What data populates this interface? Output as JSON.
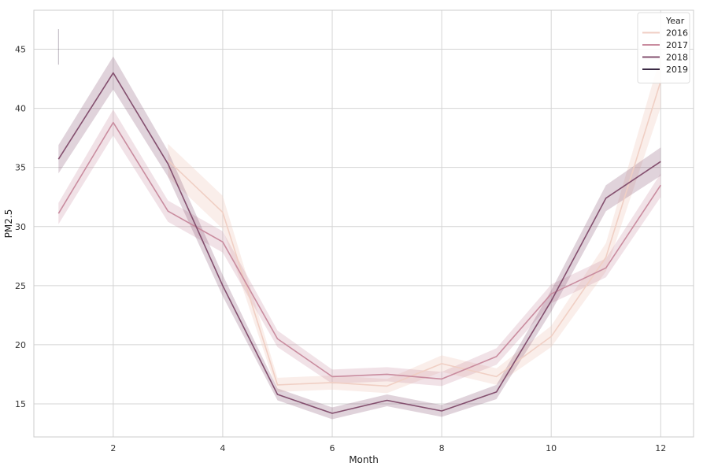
{
  "chart_data": {
    "type": "line",
    "xlabel": "Month",
    "ylabel": "PM2.5",
    "xlim": [
      0.55,
      12.6
    ],
    "ylim": [
      12.2,
      48.3
    ],
    "xticks": [
      2,
      4,
      6,
      8,
      10,
      12
    ],
    "yticks": [
      15,
      20,
      25,
      30,
      35,
      40,
      45
    ],
    "grid": true,
    "legend": {
      "title": "Year",
      "placement": "top-right"
    },
    "series": [
      {
        "name": "2016",
        "color": "#f0cfc4",
        "x": [
          3,
          4,
          5,
          6,
          7,
          8,
          9,
          10,
          11,
          12
        ],
        "values": [
          35.6,
          31.2,
          16.6,
          16.8,
          16.5,
          18.4,
          17.3,
          20.7,
          27.4,
          42.3
        ],
        "ci": [
          1.4,
          1.4,
          0.6,
          0.6,
          0.6,
          0.7,
          0.7,
          0.9,
          1.2,
          2.2
        ]
      },
      {
        "name": "2017",
        "color": "#c98c9f",
        "x": [
          1,
          2,
          3,
          4,
          5,
          6,
          7,
          8,
          9,
          10,
          11,
          12
        ],
        "values": [
          31.1,
          38.8,
          31.3,
          28.7,
          20.5,
          17.3,
          17.5,
          17.1,
          19.0,
          24.3,
          26.5,
          33.5
        ],
        "ci": [
          0.9,
          1.1,
          0.9,
          0.9,
          0.7,
          0.6,
          0.6,
          0.6,
          0.7,
          0.8,
          0.8,
          1.0
        ]
      },
      {
        "name": "2018",
        "color": "#84506f",
        "x": [
          1,
          2,
          3,
          4,
          5,
          6,
          7,
          8,
          9,
          10,
          11,
          12
        ],
        "values": [
          35.7,
          43.0,
          35.3,
          25.0,
          15.8,
          14.2,
          15.3,
          14.4,
          16.0,
          23.7,
          32.4,
          35.5
        ],
        "ci": [
          1.2,
          1.4,
          1.1,
          0.9,
          0.5,
          0.5,
          0.5,
          0.5,
          0.6,
          0.9,
          1.1,
          1.2
        ]
      },
      {
        "name": "2019",
        "color": "#3b2a45",
        "x": [
          1
        ],
        "values": [
          45.2
        ],
        "ci": [
          1.5
        ]
      }
    ]
  }
}
